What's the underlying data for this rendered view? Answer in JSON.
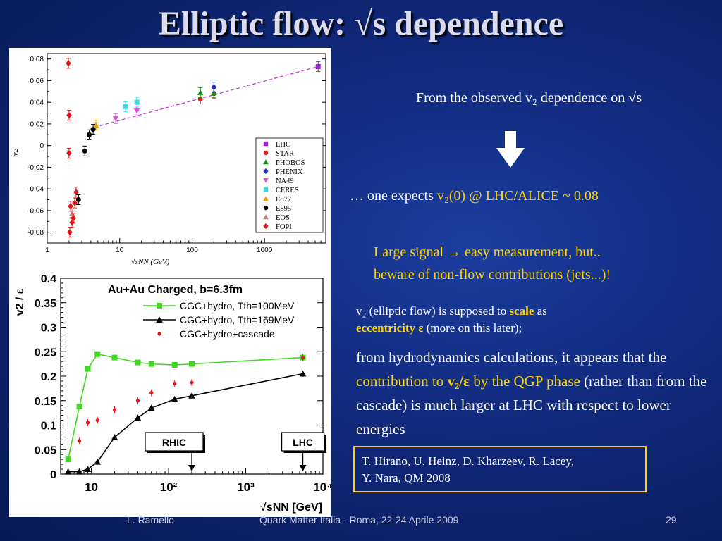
{
  "slide": {
    "title": "Elliptic flow: √s dependence",
    "right": {
      "line1": "From the observed v₂ dependence on √s",
      "line2_pre": "… one expects ",
      "line2_val": "v₂(0) @ LHC/ALICE ~ 0.08",
      "line3a": "Large signal → easy measurement, but..",
      "line3b": "beware of non-flow contributions (jets...)!",
      "line4a": "v₂ (elliptic flow) is supposed to ",
      "line4b": "scale",
      "line4c": " as",
      "line4d": "eccentricity ε",
      "line4e": " (more on this later);",
      "line5a": "from hydrodynamics calculations, it appears that the ",
      "line5b": "contribution to ",
      "line5c": "v₂/ε",
      "line5d": " by the QGP phase",
      "line5e": " (rather than from the cascade) is much larger at LHC with respect to lower energies",
      "ref_line1": "T. Hirano, U. Heinz, D. Kharzeev, R. Lacey,",
      "ref_line2": "Y. Nara, QM 2008"
    },
    "footer": {
      "author": "L. Ramello",
      "conference": "Quark Matter Italia  - Roma, 22-24 Aprile 2009",
      "page": "29"
    }
  },
  "chart_data": [
    {
      "type": "scatter",
      "title": "",
      "xlabel": "√sNN (GeV)",
      "ylabel": "v2",
      "xscale": "log",
      "xlim": [
        1,
        7000
      ],
      "ylim": [
        -0.09,
        0.085
      ],
      "xticks": [
        "1",
        "10",
        "100",
        "1000"
      ],
      "yticks": [
        "0.08",
        "0.06",
        "0.04",
        "0.02",
        "0",
        "-0.02",
        "-0.04",
        "-0.06",
        "-0.08"
      ],
      "legend_position": "right",
      "series": [
        {
          "name": "LHC",
          "color": "#9b1fd6",
          "marker": "square",
          "points": [
            [
              5500,
              0.073
            ]
          ]
        },
        {
          "name": "STAR",
          "color": "#e81818",
          "marker": "circle",
          "points": [
            [
              130,
              0.043
            ],
            [
              200,
              0.048
            ]
          ]
        },
        {
          "name": "PHOBOS",
          "color": "#109010",
          "marker": "triangle-up",
          "points": [
            [
              130,
              0.049
            ],
            [
              200,
              0.049
            ]
          ]
        },
        {
          "name": "PHENIX",
          "color": "#1d2fc8",
          "marker": "diamond",
          "points": [
            [
              200,
              0.054
            ]
          ]
        },
        {
          "name": "NA49",
          "color": "#e050e0",
          "marker": "triangle-down",
          "points": [
            [
              8.8,
              0.025
            ],
            [
              17.3,
              0.032
            ]
          ]
        },
        {
          "name": "CERES",
          "color": "#40d8d8",
          "marker": "square",
          "points": [
            [
              12,
              0.036
            ],
            [
              17.3,
              0.04
            ]
          ]
        },
        {
          "name": "E877",
          "color": "#f0a000",
          "marker": "triangle-up",
          "points": [
            [
              4.7,
              0.019
            ]
          ]
        },
        {
          "name": "E895",
          "color": "#000000",
          "marker": "circle",
          "points": [
            [
              2.7,
              -0.05
            ],
            [
              3.3,
              -0.005
            ],
            [
              3.8,
              0.01
            ],
            [
              4.3,
              0.015
            ]
          ]
        },
        {
          "name": "EOS",
          "color": "#c08080",
          "marker": "triangle-up",
          "points": [
            [
              2.2,
              -0.063
            ]
          ]
        },
        {
          "name": "FOPI",
          "color": "#e01818",
          "marker": "diamond",
          "points": [
            [
              1.96,
              0.076
            ],
            [
              2.0,
              0.028
            ],
            [
              2.0,
              -0.007
            ],
            [
              2.05,
              -0.08
            ],
            [
              2.1,
              -0.056
            ],
            [
              2.2,
              -0.071
            ],
            [
              2.3,
              -0.067
            ],
            [
              2.4,
              -0.053
            ],
            [
              2.5,
              -0.043
            ]
          ]
        }
      ],
      "trend": {
        "name": "",
        "color": "#c040d0",
        "points": [
          [
            4.5,
            0.017
          ],
          [
            5500,
            0.073
          ]
        ]
      }
    },
    {
      "type": "line",
      "title": "Au+Au Charged, b=6.3fm",
      "xlabel": "√sNN [GeV]",
      "ylabel": "v2 / ε",
      "xscale": "log",
      "xlim": [
        4,
        10000
      ],
      "ylim": [
        0,
        0.4
      ],
      "xticks": [
        "10",
        "10²",
        "10³",
        "10⁴"
      ],
      "yticks": [
        "0.4",
        "0.35",
        "0.3",
        "0.25",
        "0.2",
        "0.15",
        "0.1",
        "0.05",
        "0"
      ],
      "legend_position": "top-right",
      "annotations": [
        {
          "label": "RHIC",
          "x": 200
        },
        {
          "label": "LHC",
          "x": 5500
        }
      ],
      "series": [
        {
          "name": "CGC+hydro, Tth=100MeV",
          "color": "#40d820",
          "marker": "square",
          "x": [
            5,
            7,
            9,
            12,
            20,
            40,
            60,
            120,
            200,
            5500
          ],
          "y": [
            0.03,
            0.138,
            0.215,
            0.245,
            0.238,
            0.228,
            0.225,
            0.223,
            0.225,
            0.238
          ]
        },
        {
          "name": "CGC+hydro, Tth=169MeV",
          "color": "#000000",
          "marker": "triangle-up",
          "x": [
            5,
            7,
            9,
            12,
            20,
            40,
            60,
            120,
            200,
            5500
          ],
          "y": [
            0.005,
            0.005,
            0.01,
            0.025,
            0.075,
            0.115,
            0.135,
            0.153,
            0.16,
            0.205
          ]
        },
        {
          "name": "CGC+hydro+cascade",
          "color": "#e81818",
          "marker": "circle",
          "x": [
            7,
            9,
            12,
            20,
            40,
            60,
            120,
            200,
            5500
          ],
          "y": [
            0.068,
            0.105,
            0.11,
            0.131,
            0.15,
            0.166,
            0.185,
            0.187,
            0.238
          ]
        }
      ]
    }
  ]
}
